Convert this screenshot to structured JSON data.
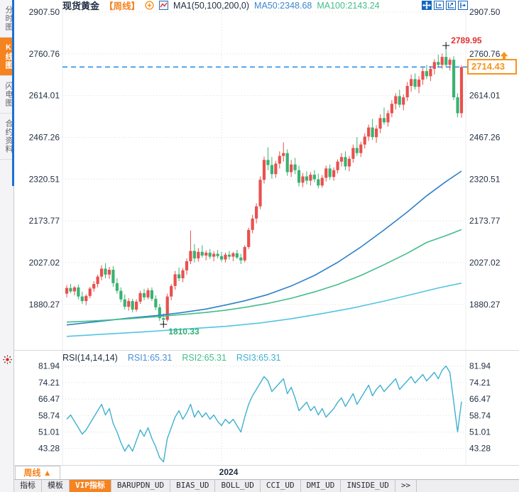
{
  "sidebar": {
    "items": [
      {
        "label": "分时图",
        "active": false
      },
      {
        "label": "K线图",
        "active": true
      },
      {
        "label": "闪电图",
        "active": false
      },
      {
        "label": "合约资料",
        "active": false
      }
    ]
  },
  "header": {
    "symbol": "现货黄金",
    "timeframe": "【周线】",
    "ma_settings": "MA1(50,100,200,0)",
    "ma50_label": "MA50:2348.68",
    "ma100_label": "MA100:2143.24",
    "icons": [
      "add-circle-icon",
      "mini-chart-icon"
    ]
  },
  "toolbar": {
    "icons": [
      "move-tool-icon",
      "axis-zoom-icon",
      "axis-scale-icon",
      "pan-right-icon"
    ]
  },
  "footer": {
    "timeframe_button": "周线 ▲",
    "tabs": [
      {
        "label": "指标",
        "active": false
      },
      {
        "label": "模板",
        "active": false
      },
      {
        "label": "VIP指标",
        "active": true
      },
      {
        "label": "BARUPDN_UD",
        "active": false
      },
      {
        "label": "BIAS_UD",
        "active": false
      },
      {
        "label": "BOLL_UD",
        "active": false
      },
      {
        "label": "CCI_UD",
        "active": false
      },
      {
        "label": "DMI_UD",
        "active": false
      },
      {
        "label": "INSIDE_UD",
        "active": false
      },
      {
        "label": ">>",
        "active": false
      }
    ]
  },
  "colors": {
    "accent_orange": "#f5831f",
    "up": "#e9504e",
    "down": "#3ab272",
    "ma50": "#2f80c8",
    "ma100": "#43bd8b",
    "ma200": "#52c5e0",
    "rsi_line": "#3fb0d0",
    "price_line": "#1e88e5",
    "annotation_high": "#e03131",
    "annotation_low": "#2eaf72",
    "axis_text": "#1f2d40",
    "grid": "#d9d9e0"
  },
  "chart_data": [
    {
      "id": "price",
      "type": "candlestick",
      "title": "现货黄金 周线",
      "color_convention": "red=up, green=down",
      "ylim": [
        1725,
        2925
      ],
      "yticks": {
        "labels": [
          "2907.50",
          "2760.76",
          "2614.01",
          "2467.26",
          "2320.51",
          "2173.77",
          "2027.02",
          "1880.27"
        ],
        "values": [
          2907.5,
          2760.76,
          2614.01,
          2467.26,
          2320.51,
          2173.77,
          2027.02,
          1880.27
        ]
      },
      "year_label": "2024",
      "year_gridline_index": 40,
      "price_line": {
        "value": 2714.43,
        "label": "2714.43"
      },
      "annotations": [
        {
          "type": "high",
          "index": 98,
          "value": 2789.95,
          "label": "2789.95"
        },
        {
          "type": "low",
          "index": 25,
          "value": 1810.33,
          "label": "1810.33"
        }
      ],
      "ohlc": [
        [
          1918,
          1948,
          1905,
          1938
        ],
        [
          1938,
          1952,
          1920,
          1926
        ],
        [
          1926,
          1945,
          1912,
          1940
        ],
        [
          1940,
          1950,
          1898,
          1908
        ],
        [
          1908,
          1925,
          1882,
          1892
        ],
        [
          1892,
          1916,
          1878,
          1910
        ],
        [
          1910,
          1942,
          1902,
          1936
        ],
        [
          1936,
          1962,
          1925,
          1952
        ],
        [
          1952,
          1985,
          1940,
          1978
        ],
        [
          1978,
          2018,
          1965,
          2006
        ],
        [
          2006,
          2025,
          1972,
          1985
        ],
        [
          1985,
          2012,
          1970,
          2002
        ],
        [
          2002,
          2015,
          1942,
          1955
        ],
        [
          1955,
          1972,
          1918,
          1928
        ],
        [
          1928,
          1940,
          1888,
          1898
        ],
        [
          1898,
          1915,
          1862,
          1872
        ],
        [
          1872,
          1902,
          1858,
          1892
        ],
        [
          1892,
          1900,
          1852,
          1862
        ],
        [
          1862,
          1898,
          1855,
          1890
        ],
        [
          1890,
          1928,
          1882,
          1920
        ],
        [
          1920,
          1935,
          1895,
          1905
        ],
        [
          1905,
          1938,
          1898,
          1930
        ],
        [
          1930,
          1940,
          1892,
          1900
        ],
        [
          1900,
          1912,
          1860,
          1870
        ],
        [
          1870,
          1882,
          1822,
          1832
        ],
        [
          1832,
          1848,
          1810.33,
          1826
        ],
        [
          1826,
          1918,
          1820,
          1908
        ],
        [
          1908,
          1952,
          1895,
          1945
        ],
        [
          1945,
          1998,
          1932,
          1986
        ],
        [
          1986,
          2010,
          1962,
          1972
        ],
        [
          1972,
          2008,
          1958,
          2000
        ],
        [
          2000,
          2042,
          1985,
          2032
        ],
        [
          2032,
          2140,
          2022,
          2068
        ],
        [
          2068,
          2092,
          2028,
          2042
        ],
        [
          2042,
          2078,
          2030,
          2065
        ],
        [
          2065,
          2088,
          2045,
          2052
        ],
        [
          2052,
          2070,
          2035,
          2062
        ],
        [
          2062,
          2075,
          2040,
          2048
        ],
        [
          2048,
          2068,
          2032,
          2058
        ],
        [
          2058,
          2072,
          2042,
          2050
        ],
        [
          2050,
          2065,
          2030,
          2038
        ],
        [
          2038,
          2062,
          2028,
          2055
        ],
        [
          2055,
          2068,
          2038,
          2048
        ],
        [
          2048,
          2065,
          2032,
          2060
        ],
        [
          2060,
          2072,
          2040,
          2045
        ],
        [
          2045,
          2058,
          2022,
          2035
        ],
        [
          2035,
          2088,
          2028,
          2082
        ],
        [
          2082,
          2150,
          2075,
          2142
        ],
        [
          2142,
          2195,
          2130,
          2182
        ],
        [
          2182,
          2236,
          2165,
          2225
        ],
        [
          2225,
          2330,
          2215,
          2318
        ],
        [
          2318,
          2400,
          2305,
          2388
        ],
        [
          2388,
          2432,
          2352,
          2370
        ],
        [
          2370,
          2398,
          2322,
          2338
        ],
        [
          2338,
          2385,
          2325,
          2375
        ],
        [
          2375,
          2418,
          2358,
          2402
        ],
        [
          2402,
          2450,
          2382,
          2412
        ],
        [
          2412,
          2425,
          2332,
          2345
        ],
        [
          2345,
          2388,
          2328,
          2372
        ],
        [
          2372,
          2395,
          2338,
          2352
        ],
        [
          2352,
          2368,
          2295,
          2308
        ],
        [
          2308,
          2342,
          2292,
          2330
        ],
        [
          2330,
          2348,
          2302,
          2315
        ],
        [
          2315,
          2345,
          2298,
          2336
        ],
        [
          2336,
          2352,
          2310,
          2320
        ],
        [
          2320,
          2340,
          2288,
          2298
        ],
        [
          2298,
          2335,
          2290,
          2325
        ],
        [
          2325,
          2368,
          2312,
          2358
        ],
        [
          2358,
          2372,
          2318,
          2328
        ],
        [
          2328,
          2362,
          2315,
          2352
        ],
        [
          2352,
          2390,
          2340,
          2382
        ],
        [
          2382,
          2412,
          2365,
          2398
        ],
        [
          2398,
          2418,
          2352,
          2365
        ],
        [
          2365,
          2402,
          2348,
          2392
        ],
        [
          2392,
          2442,
          2378,
          2430
        ],
        [
          2430,
          2468,
          2402,
          2412
        ],
        [
          2412,
          2452,
          2398,
          2442
        ],
        [
          2442,
          2482,
          2428,
          2470
        ],
        [
          2470,
          2512,
          2455,
          2502
        ],
        [
          2502,
          2532,
          2458,
          2468
        ],
        [
          2468,
          2510,
          2448,
          2498
        ],
        [
          2498,
          2548,
          2482,
          2535
        ],
        [
          2535,
          2572,
          2512,
          2520
        ],
        [
          2520,
          2562,
          2505,
          2552
        ],
        [
          2552,
          2598,
          2538,
          2585
        ],
        [
          2585,
          2622,
          2565,
          2612
        ],
        [
          2612,
          2635,
          2572,
          2582
        ],
        [
          2582,
          2618,
          2562,
          2608
        ],
        [
          2608,
          2662,
          2595,
          2648
        ],
        [
          2648,
          2688,
          2628,
          2672
        ],
        [
          2672,
          2692,
          2635,
          2645
        ],
        [
          2645,
          2682,
          2622,
          2670
        ],
        [
          2670,
          2712,
          2652,
          2700
        ],
        [
          2700,
          2722,
          2672,
          2682
        ],
        [
          2682,
          2718,
          2665,
          2708
        ],
        [
          2708,
          2742,
          2688,
          2732
        ],
        [
          2732,
          2758,
          2712,
          2722
        ],
        [
          2722,
          2762,
          2708,
          2750
        ],
        [
          2750,
          2789.95,
          2715,
          2722
        ],
        [
          2722,
          2748,
          2702,
          2740
        ],
        [
          2740,
          2752,
          2598,
          2608
        ],
        [
          2608,
          2622,
          2538,
          2552
        ],
        [
          2552,
          2720,
          2536,
          2714.43
        ]
      ],
      "ma_series": [
        {
          "name": "MA50",
          "color_key": "ma50",
          "points": [
            [
              0,
              1808
            ],
            [
              8,
              1820
            ],
            [
              16,
              1832
            ],
            [
              24,
              1842
            ],
            [
              30,
              1852
            ],
            [
              36,
              1864
            ],
            [
              41,
              1878
            ],
            [
              46,
              1893
            ],
            [
              52,
              1915
            ],
            [
              58,
              1945
            ],
            [
              64,
              1982
            ],
            [
              70,
              2028
            ],
            [
              76,
              2082
            ],
            [
              82,
              2142
            ],
            [
              88,
              2205
            ],
            [
              93,
              2262
            ],
            [
              98,
              2312
            ],
            [
              102,
              2348.68
            ]
          ]
        },
        {
          "name": "MA100",
          "color_key": "ma100",
          "points": [
            [
              0,
              1818
            ],
            [
              8,
              1823
            ],
            [
              16,
              1830
            ],
            [
              24,
              1838
            ],
            [
              30,
              1845
            ],
            [
              36,
              1852
            ],
            [
              41,
              1860
            ],
            [
              46,
              1870
            ],
            [
              52,
              1884
            ],
            [
              58,
              1902
            ],
            [
              64,
              1924
            ],
            [
              70,
              1950
            ],
            [
              76,
              1982
            ],
            [
              82,
              2020
            ],
            [
              88,
              2060
            ],
            [
              93,
              2098
            ],
            [
              98,
              2122
            ],
            [
              102,
              2143.24
            ]
          ]
        },
        {
          "name": "MA200",
          "color_key": "ma200",
          "points": [
            [
              0,
              1768
            ],
            [
              10,
              1776
            ],
            [
              20,
              1784
            ],
            [
              30,
              1793
            ],
            [
              41,
              1803
            ],
            [
              50,
              1815
            ],
            [
              58,
              1830
            ],
            [
              66,
              1848
            ],
            [
              74,
              1868
            ],
            [
              82,
              1892
            ],
            [
              90,
              1918
            ],
            [
              96,
              1938
            ],
            [
              102,
              1955
            ]
          ]
        }
      ]
    },
    {
      "id": "rsi",
      "type": "line",
      "header": {
        "title": "RSI(14,14,14)",
        "rsi1": "RSI1:65.31",
        "rsi2": "RSI2:65.31",
        "rsi3": "RSI3:65.31"
      },
      "ylim": [
        36.5,
        84.5
      ],
      "yticks": {
        "labels": [
          "81.94",
          "74.21",
          "66.47",
          "58.74",
          "51.01",
          "43.28"
        ],
        "values": [
          81.94,
          74.21,
          66.47,
          58.74,
          51.01,
          43.28
        ]
      },
      "values": [
        57,
        59,
        56,
        53,
        50,
        52,
        55,
        58,
        61,
        64,
        59,
        62,
        55,
        51,
        46,
        42,
        45,
        42,
        47,
        52,
        49,
        53,
        48,
        44,
        39,
        37,
        48,
        53,
        58,
        61,
        57,
        60,
        64,
        58,
        61,
        58,
        60,
        57,
        59,
        56,
        54,
        57,
        55,
        57,
        54,
        51,
        58,
        64,
        68,
        71,
        74,
        77,
        75,
        70,
        72,
        74,
        76,
        69,
        72,
        67,
        61,
        63,
        65,
        61,
        63,
        59,
        62,
        58,
        60,
        62,
        65,
        67,
        63,
        66,
        69,
        64,
        67,
        70,
        73,
        68,
        71,
        73,
        70,
        72,
        74,
        76,
        71,
        73,
        75,
        77,
        74,
        76,
        78,
        75,
        77,
        79,
        76,
        80,
        82,
        79,
        65,
        51,
        65.31
      ]
    }
  ]
}
